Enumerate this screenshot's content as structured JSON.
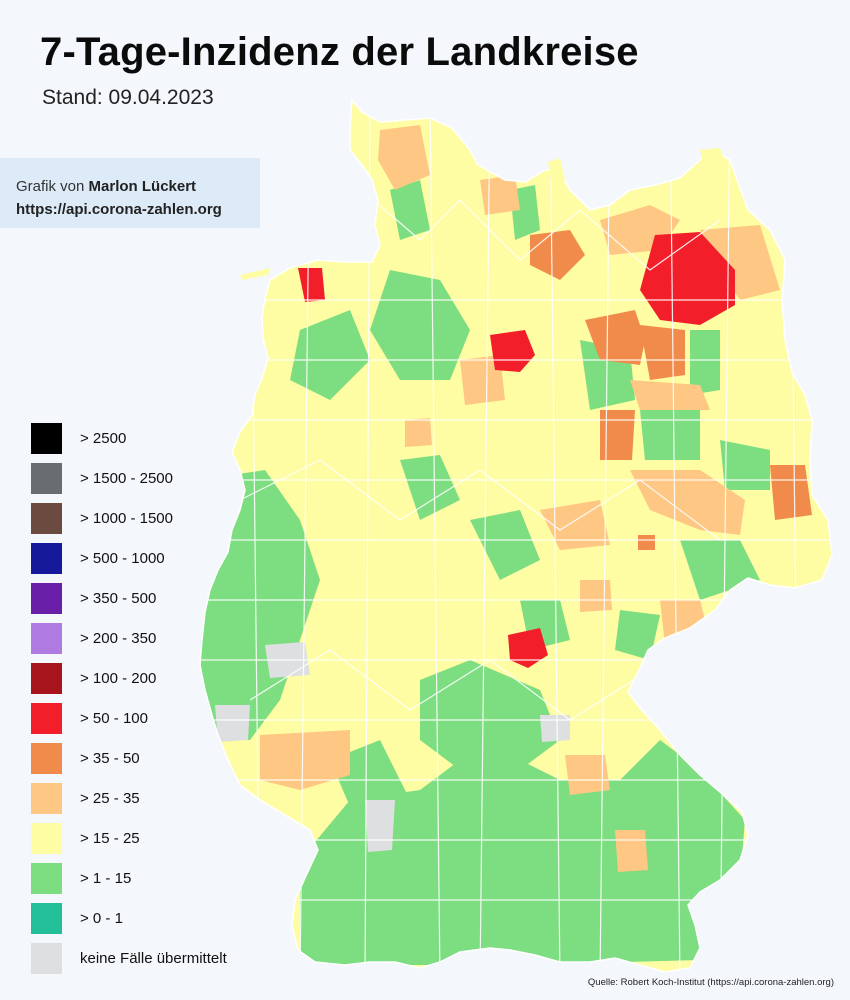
{
  "header": {
    "title": "7-Tage-Inzidenz der Landkreise",
    "subtitle": "Stand: 09.04.2023"
  },
  "credit": {
    "prefix": "Grafik von ",
    "author": "Marlon Lückert",
    "url": "https://api.corona-zahlen.org"
  },
  "legend": {
    "items": [
      {
        "label": "> 2500",
        "color": "#000000"
      },
      {
        "label": "> 1500 - 2500",
        "color": "#6a6d70"
      },
      {
        "label": "> 1000 - 1500",
        "color": "#6b4a40"
      },
      {
        "label": "> 500 - 1000",
        "color": "#161a9a"
      },
      {
        "label": "> 350 - 500",
        "color": "#6a1fa8"
      },
      {
        "label": "> 200 - 350",
        "color": "#b07be0"
      },
      {
        "label": "> 100 - 200",
        "color": "#a8141c"
      },
      {
        "label": "> 50 - 100",
        "color": "#f21f2a"
      },
      {
        "label": "> 35 - 50",
        "color": "#f18b4c"
      },
      {
        "label": "> 25 - 35",
        "color": "#fec783"
      },
      {
        "label": "> 15 - 25",
        "color": "#fefda3"
      },
      {
        "label": "> 1 - 15",
        "color": "#7ddd81"
      },
      {
        "label": "> 0 - 1",
        "color": "#22bf99"
      },
      {
        "label": "keine Fälle übermittelt",
        "color": "#dedfe0"
      }
    ]
  },
  "source": "Quelle: Robert Koch-Institut (https://api.corona-zahlen.org)",
  "map": {
    "region": "Germany",
    "border_color": "#ffffff"
  }
}
